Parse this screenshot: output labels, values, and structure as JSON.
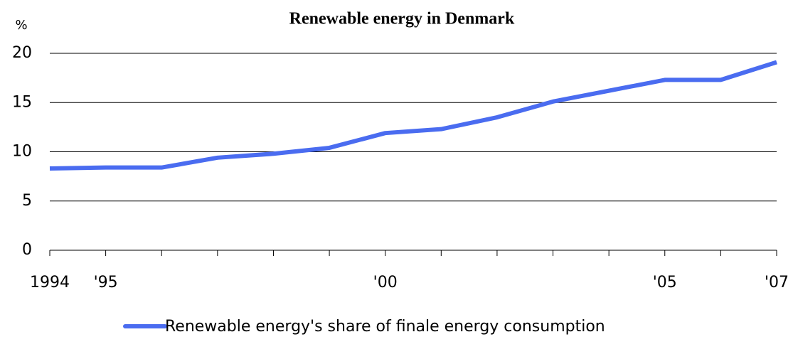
{
  "chart_data": {
    "type": "line",
    "title": "Renewable energy in Denmark",
    "y_label": "%",
    "categories": [
      "1994",
      "'95",
      null,
      null,
      null,
      null,
      "'00",
      null,
      null,
      null,
      null,
      "'05",
      null,
      "'07"
    ],
    "series": [
      {
        "name": "Renewable energy's share of finale energy consumption",
        "color": "#4a6cf0",
        "values": [
          8.3,
          8.4,
          8.4,
          9.4,
          9.8,
          10.4,
          11.9,
          12.3,
          13.5,
          15.1,
          16.2,
          17.3,
          17.3,
          19.1
        ]
      }
    ],
    "ylim": [
      0,
      20
    ],
    "yticks": [
      0,
      5,
      10,
      15,
      20
    ],
    "grid": true,
    "legend": "bottom"
  }
}
